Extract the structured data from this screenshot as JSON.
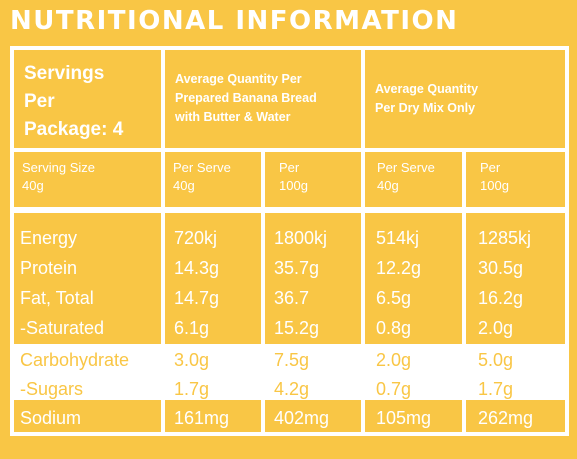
{
  "title": "NUTRITIONAL INFORMATION",
  "header": {
    "servings_line1": "Servings",
    "servings_line2": "Per",
    "servings_line3": "Package: 4",
    "serving_size_label": "Serving Size",
    "serving_size_value": "40g",
    "group1_line1": "Average Quantity Per",
    "group1_line2": "Prepared Banana Bread",
    "group1_line3": "with Butter & Water",
    "group2_line1": "Average Quantity",
    "group2_line2": "Per Dry Mix Only",
    "col1_line1": "Per Serve",
    "col1_line2": "40g",
    "col2_line1": "Per",
    "col2_line2": "100g",
    "col3_line1": "Per Serve",
    "col3_line2": "40g",
    "col4_line1": "Per",
    "col4_line2": "100g"
  },
  "rows": [
    {
      "name": "Energy",
      "values": [
        "720kj",
        "1800kj",
        "514kj",
        "1285kj"
      ]
    },
    {
      "name": "Protein",
      "values": [
        "14.3g",
        "35.7g",
        "12.2g",
        "30.5g"
      ]
    },
    {
      "name": "Fat, Total",
      "values": [
        "14.7g",
        "36.7",
        "6.5g",
        "16.2g"
      ]
    },
    {
      "name": "-Saturated",
      "values": [
        "6.1g",
        "15.2g",
        "0.8g",
        "2.0g"
      ]
    },
    {
      "name": "Carbohydrate",
      "values": [
        "3.0g",
        "7.5g",
        "2.0g",
        "5.0g"
      ]
    },
    {
      "name": "-Sugars",
      "values": [
        "1.7g",
        "4.2g",
        "0.7g",
        "1.7g"
      ]
    },
    {
      "name": "Sodium",
      "values": [
        "161mg",
        "402mg",
        "105mg",
        "262mg"
      ]
    }
  ],
  "colors": {
    "accent": "#f9c645",
    "text": "#ffffff"
  }
}
